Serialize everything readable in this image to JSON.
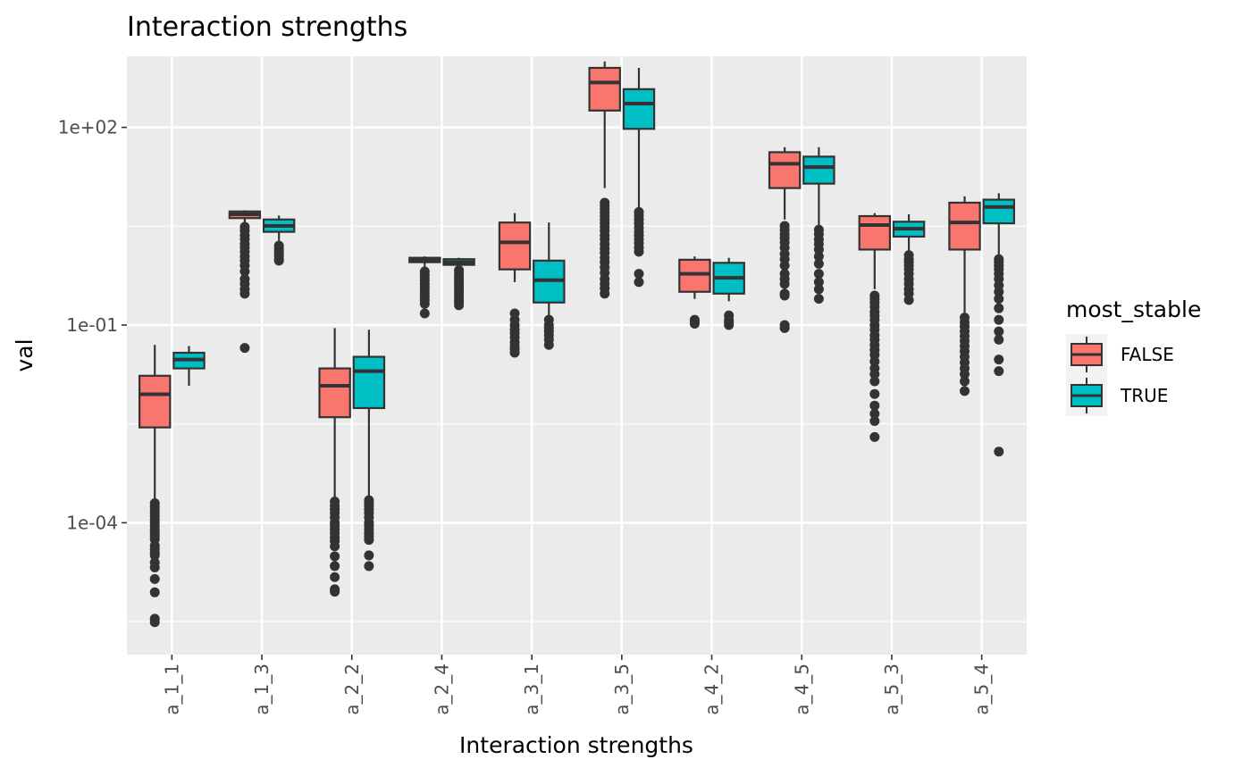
{
  "chart_data": {
    "type": "boxplot",
    "title": "Interaction strengths",
    "xlabel": "Interaction strengths",
    "ylabel": "val",
    "y_scale": "log10",
    "ylim": [
      1e-06,
      1200
    ],
    "y_ticks": [
      {
        "value": 0.0001,
        "label": "1e-04"
      },
      {
        "value": 0.1,
        "label": "1e-01"
      },
      {
        "value": 100,
        "label": "1e+02"
      }
    ],
    "y_minor_ticks": [
      3.162e-06,
      0.003162,
      3.162
    ],
    "categories": [
      "a_1_1",
      "a_1_3",
      "a_2_2",
      "a_2_4",
      "a_3_1",
      "a_3_5",
      "a_4_2",
      "a_4_5",
      "a_5_3",
      "a_5_4"
    ],
    "legend": {
      "title": "most_stable",
      "position": "right",
      "entries": [
        {
          "label": "FALSE",
          "color": "#F8766D"
        },
        {
          "label": "TRUE",
          "color": "#00BFC4"
        }
      ]
    },
    "grid": true,
    "series": [
      {
        "name": "FALSE",
        "color": "#F8766D",
        "boxes": [
          {
            "min": 0.00019,
            "q1": 0.0028,
            "median": 0.0089,
            "q3": 0.017,
            "max": 0.05,
            "outliers": [
              0.000198,
              0.000178,
              0.000158,
              0.000141,
              0.000126,
              0.000112,
              0.0001,
              8.9e-05,
              7.9e-05,
              7.1e-05,
              6.3e-05,
              5.6e-05,
              4.5e-05,
              4e-05,
              3.5e-05,
              3.2e-05,
              2.5e-05,
              2.1e-05,
              1.4e-05,
              8.8e-06,
              3.5e-06,
              3.1e-06
            ]
          },
          {
            "min": 3.5,
            "q1": 4.2,
            "median": 4.8,
            "q3": 5.3,
            "max": 5.5,
            "outliers": [
              3.1,
              2.7,
              2.3,
              2.0,
              1.7,
              1.5,
              1.3,
              1.1,
              0.95,
              0.8,
              0.65,
              0.5,
              0.42,
              0.35,
              0.3,
              0.045
            ]
          },
          {
            "min": 0.00022,
            "q1": 0.004,
            "median": 0.012,
            "q3": 0.022,
            "max": 0.09,
            "outliers": [
              0.00021,
              0.00018,
              0.00016,
              0.00014,
              0.00012,
              0.0001,
              9e-05,
              7.9e-05,
              6.9e-05,
              6e-05,
              5.3e-05,
              4.4e-05,
              3.1e-05,
              2.2e-05,
              1.5e-05,
              9.8e-06,
              9e-06
            ]
          },
          {
            "min": 0.75,
            "q1": 0.9,
            "median": 0.98,
            "q3": 1.05,
            "max": 1.1,
            "outliers": [
              0.65,
              0.58,
              0.52,
              0.47,
              0.42,
              0.38,
              0.34,
              0.3,
              0.27,
              0.24,
              0.21,
              0.15
            ]
          },
          {
            "min": 0.45,
            "q1": 0.7,
            "median": 1.8,
            "q3": 3.6,
            "max": 5.0,
            "outliers": [
              0.15,
              0.12,
              0.1,
              0.085,
              0.075,
              0.065,
              0.055,
              0.048,
              0.043,
              0.038
            ]
          },
          {
            "min": 12,
            "q1": 180,
            "median": 480,
            "q3": 800,
            "max": 1000,
            "outliers": [
              7.2,
              6.5,
              5.8,
              5.1,
              4.5,
              4.0,
              3.5,
              3.1,
              2.7,
              2.3,
              2.0,
              1.7,
              1.45,
              1.25,
              1.05,
              0.9,
              0.75,
              0.62,
              0.5,
              0.42,
              0.36,
              0.3
            ]
          },
          {
            "min": 0.25,
            "q1": 0.32,
            "median": 0.6,
            "q3": 0.98,
            "max": 1.1,
            "outliers": [
              0.12,
              0.11,
              0.105
            ]
          },
          {
            "min": 4.0,
            "q1": 12,
            "median": 28,
            "q3": 42,
            "max": 50,
            "outliers": [
              3.2,
              2.8,
              2.4,
              2.1,
              1.8,
              1.5,
              1.2,
              1.0,
              0.8,
              0.6,
              0.5,
              0.42,
              0.3,
              0.28,
              0.1,
              0.09
            ]
          },
          {
            "min": 0.35,
            "q1": 1.4,
            "median": 3.3,
            "q3": 4.5,
            "max": 5.0,
            "outliers": [
              0.28,
              0.25,
              0.22,
              0.19,
              0.16,
              0.14,
              0.12,
              0.1,
              0.085,
              0.07,
              0.06,
              0.05,
              0.042,
              0.035,
              0.028,
              0.022,
              0.018,
              0.014,
              0.009,
              0.006,
              0.0045,
              0.0035,
              0.002
            ]
          },
          {
            "min": 0.15,
            "q1": 1.4,
            "median": 3.6,
            "q3": 7.2,
            "max": 9.0,
            "outliers": [
              0.13,
              0.11,
              0.095,
              0.08,
              0.068,
              0.057,
              0.048,
              0.04,
              0.033,
              0.027,
              0.022,
              0.018,
              0.014,
              0.01
            ]
          }
        ]
      },
      {
        "name": "TRUE",
        "color": "#00BFC4",
        "boxes": [
          {
            "min": 0.012,
            "q1": 0.022,
            "median": 0.03,
            "q3": 0.038,
            "max": 0.048,
            "outliers": []
          },
          {
            "min": 1.9,
            "q1": 2.6,
            "median": 3.2,
            "q3": 4.0,
            "max": 4.6,
            "outliers": [
              1.6,
              1.45,
              1.3,
              1.2,
              1.1,
              1.0,
              0.95
            ]
          },
          {
            "min": 0.00023,
            "q1": 0.0055,
            "median": 0.02,
            "q3": 0.033,
            "max": 0.085,
            "outliers": [
              0.00022,
              0.0002,
              0.00018,
              0.00016,
              0.00014,
              0.00012,
              0.0001,
              9e-05,
              7.9e-05,
              7e-05,
              6.2e-05,
              5.5e-05,
              3.2e-05,
              2.2e-05
            ]
          },
          {
            "min": 0.7,
            "q1": 0.82,
            "median": 0.9,
            "q3": 1.0,
            "max": 1.05,
            "outliers": [
              0.68,
              0.6,
              0.54,
              0.49,
              0.44,
              0.4,
              0.36,
              0.33,
              0.3,
              0.27,
              0.24,
              0.22,
              0.2
            ]
          },
          {
            "min": 0.13,
            "q1": 0.22,
            "median": 0.48,
            "q3": 0.95,
            "max": 3.6,
            "outliers": [
              0.12,
              0.1,
              0.09,
              0.08,
              0.07,
              0.06,
              0.05
            ]
          },
          {
            "min": 6.0,
            "q1": 95,
            "median": 230,
            "q3": 380,
            "max": 800,
            "outliers": [
              5.2,
              4.6,
              4.0,
              3.5,
              3.0,
              2.6,
              2.3,
              2.0,
              1.75,
              1.5,
              1.3,
              0.6,
              0.45
            ]
          },
          {
            "min": 0.23,
            "q1": 0.3,
            "median": 0.52,
            "q3": 0.88,
            "max": 1.05,
            "outliers": [
              0.14,
              0.12,
              0.11,
              0.1
            ]
          },
          {
            "min": 3.0,
            "q1": 14,
            "median": 25,
            "q3": 36,
            "max": 50,
            "outliers": [
              2.8,
              2.4,
              2.0,
              1.7,
              1.4,
              1.1,
              0.85,
              0.6,
              0.45,
              0.35,
              0.25
            ]
          },
          {
            "min": 1.3,
            "q1": 2.2,
            "median": 2.9,
            "q3": 3.7,
            "max": 4.8,
            "outliers": [
              1.15,
              1.0,
              0.9,
              0.8,
              0.7,
              0.6,
              0.5,
              0.42,
              0.35,
              0.3,
              0.24
            ]
          },
          {
            "min": 1.1,
            "q1": 3.5,
            "median": 6.2,
            "q3": 8.0,
            "max": 10.0,
            "outliers": [
              1.0,
              0.9,
              0.8,
              0.7,
              0.6,
              0.5,
              0.4,
              0.32,
              0.25,
              0.18,
              0.12,
              0.08,
              0.06,
              0.03,
              0.02,
              0.0012
            ]
          }
        ]
      }
    ]
  }
}
